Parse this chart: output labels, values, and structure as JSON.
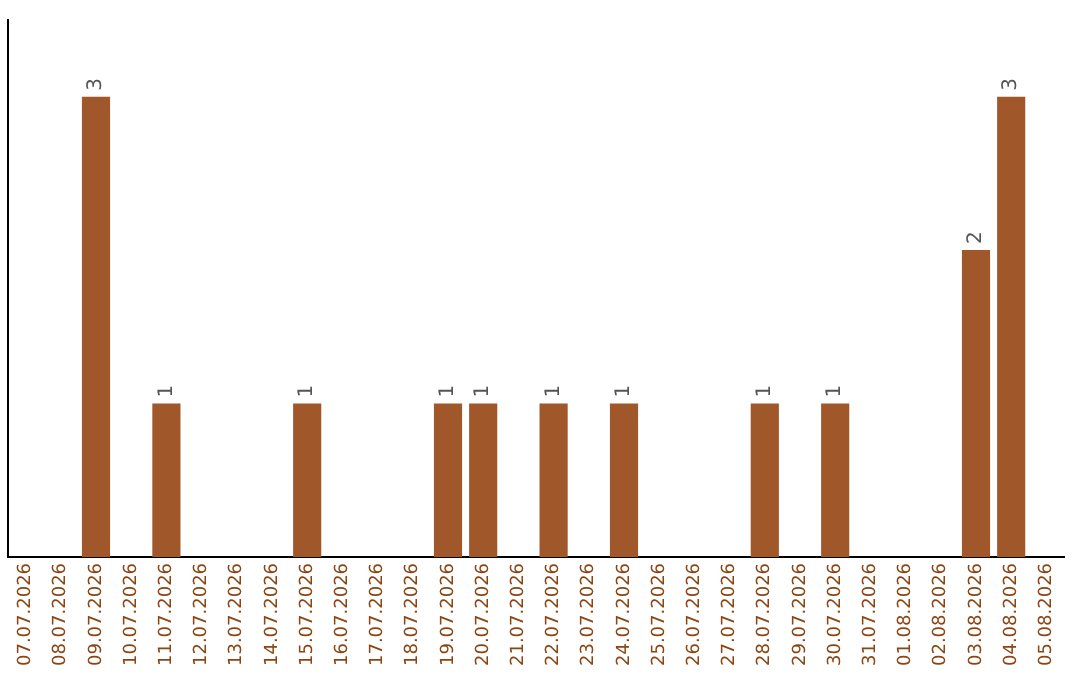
{
  "chart_data": {
    "type": "bar",
    "categories": [
      "07.07.2026",
      "08.07.2026",
      "09.07.2026",
      "10.07.2026",
      "11.07.2026",
      "12.07.2026",
      "13.07.2026",
      "14.07.2026",
      "15.07.2026",
      "16.07.2026",
      "17.07.2026",
      "18.07.2026",
      "19.07.2026",
      "20.07.2026",
      "21.07.2026",
      "22.07.2026",
      "23.07.2026",
      "24.07.2026",
      "25.07.2026",
      "26.07.2026",
      "27.07.2026",
      "28.07.2026",
      "29.07.2026",
      "30.07.2026",
      "31.07.2026",
      "01.08.2026",
      "02.08.2026",
      "03.08.2026",
      "04.08.2026",
      "05.08.2026"
    ],
    "values": [
      0,
      0,
      3,
      0,
      1,
      0,
      0,
      0,
      1,
      0,
      0,
      0,
      1,
      1,
      0,
      1,
      0,
      1,
      0,
      0,
      0,
      1,
      0,
      1,
      0,
      0,
      0,
      2,
      3,
      0
    ],
    "value_labels": [
      null,
      null,
      "3",
      null,
      "1",
      null,
      null,
      null,
      "1",
      null,
      null,
      null,
      "1",
      "1",
      null,
      "1",
      null,
      "1",
      null,
      null,
      null,
      "1",
      null,
      "1",
      null,
      null,
      null,
      "2",
      "3",
      null
    ],
    "color": "#a0572a",
    "grid": false,
    "legend": false
  }
}
